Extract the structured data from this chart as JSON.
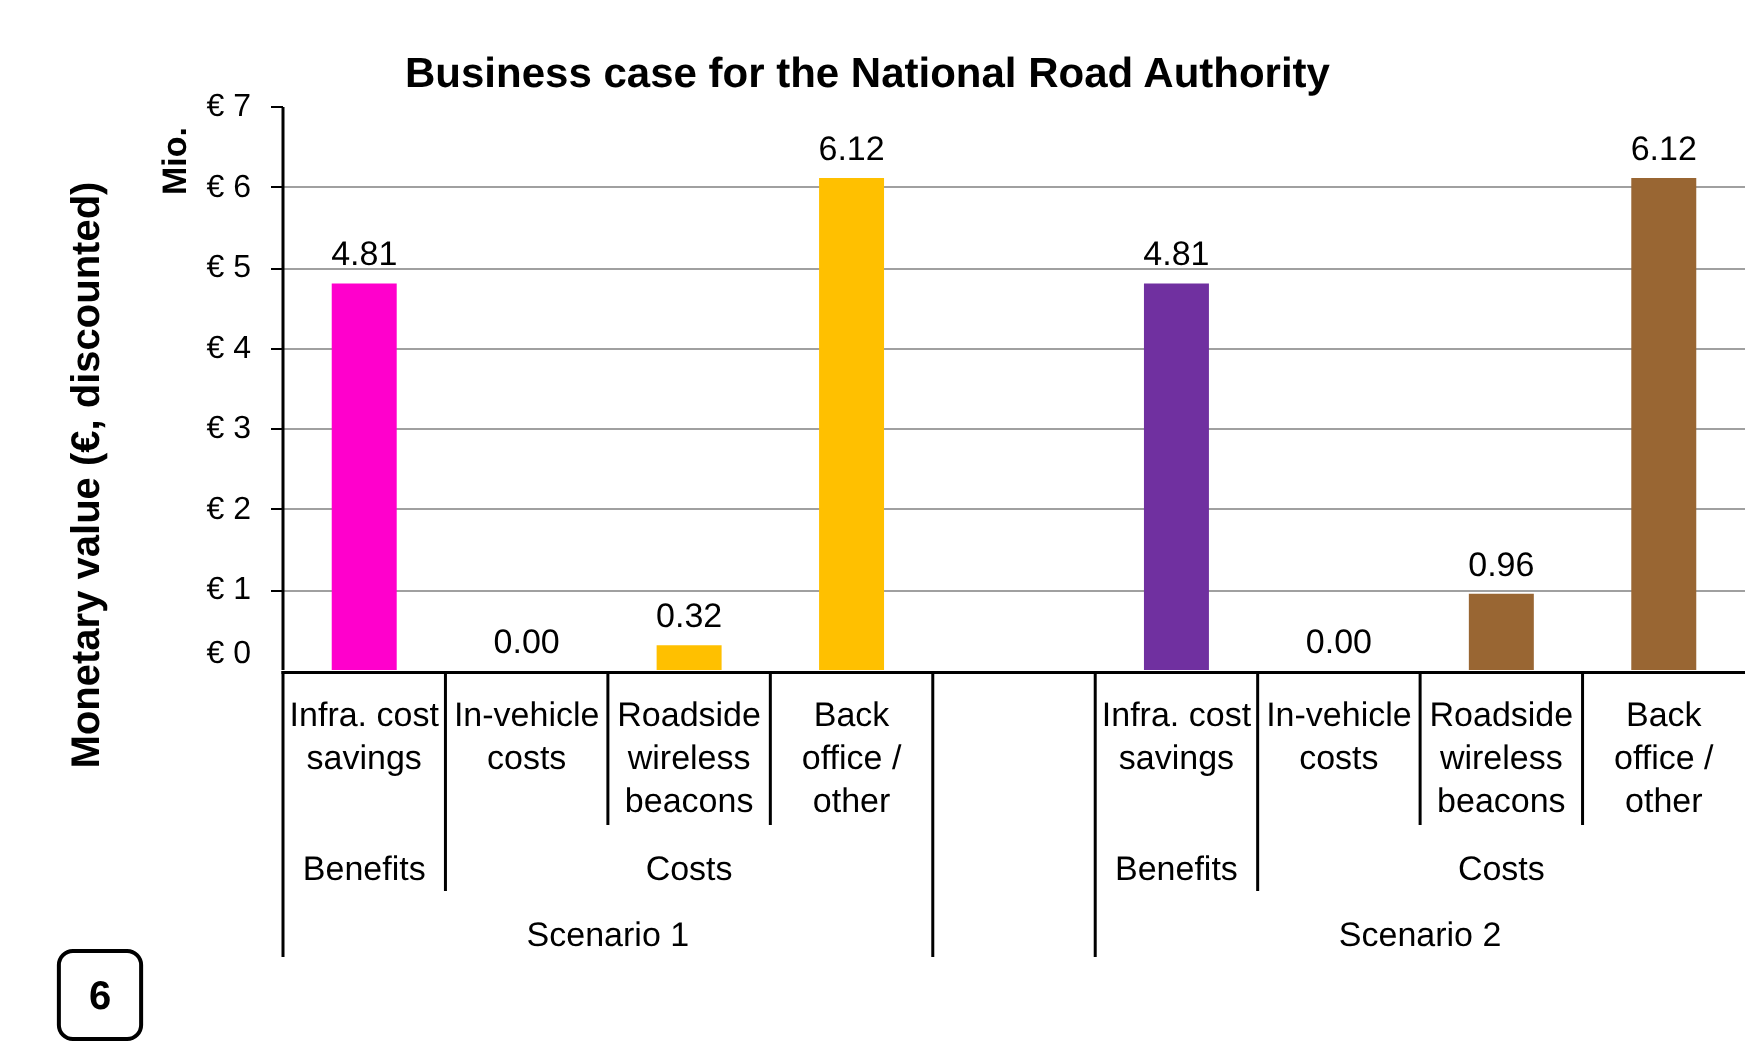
{
  "chart_data": {
    "type": "bar",
    "title": "Business case for the National Road Authority",
    "ylabel": "Monetary value (€, discounted)",
    "categories": [
      "Infra. cost savings",
      "In-vehicle costs",
      "Roadside wireless beacons",
      "Back office / other",
      null,
      "Infra. cost savings",
      "In-vehicle costs",
      "Roadside wireless beacons",
      "Back office / other"
    ],
    "values": [
      4.81,
      0,
      0.32,
      6.12,
      null,
      4.81,
      0,
      0.96,
      6.12
    ],
    "colors": [
      "#ff00cc",
      "#ffc000",
      "#ffc000",
      "#ffc000",
      null,
      "#7030a0",
      "#996633",
      "#996633",
      "#996633"
    ],
    "value_labels": [
      "4.81",
      "0.00",
      "0.32",
      "6.12",
      null,
      "4.81",
      "0.00",
      "0.96",
      "6.12"
    ],
    "ylim": [
      0,
      7
    ],
    "yticks": [
      {
        "value": 0,
        "label": "€ 0"
      },
      {
        "value": 1,
        "label": "€ 1"
      },
      {
        "value": 2,
        "label": "€ 2"
      },
      {
        "value": 3,
        "label": "€ 3"
      },
      {
        "value": 4,
        "label": "€ 4"
      },
      {
        "value": 5,
        "label": "€ 5"
      },
      {
        "value": 6,
        "label": "€ 6"
      },
      {
        "value": 7,
        "label": "€ 7"
      }
    ],
    "grid": "y",
    "annotations": [
      "Mio.",
      "Benefits",
      "Costs",
      "Scenario 1",
      "Benefits",
      "Costs",
      "Scenario 2",
      "6"
    ]
  }
}
